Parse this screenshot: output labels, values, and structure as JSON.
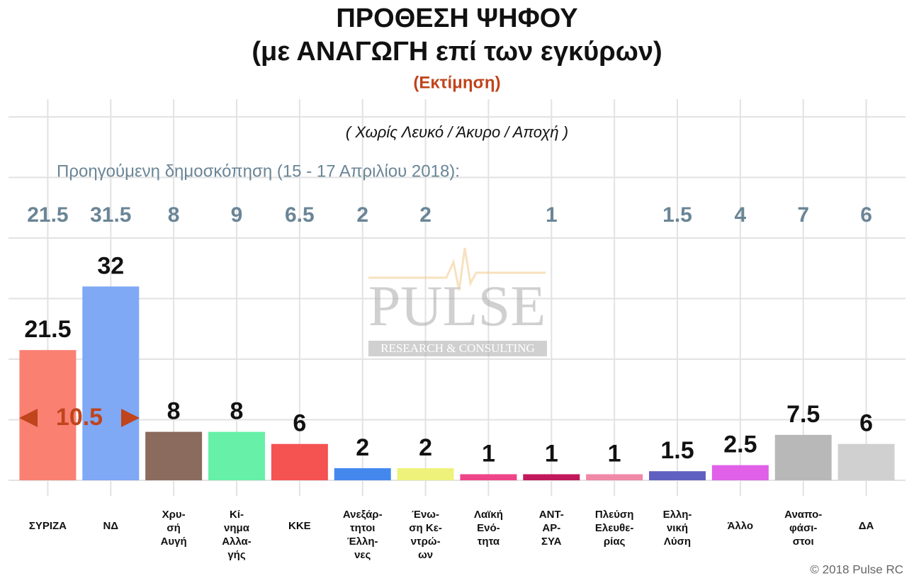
{
  "chart_data": {
    "type": "bar",
    "title": "ΠΡΟΘΕΣΗ ΨΗΦΟΥ",
    "subtitle": "(με ΑΝΑΓΩΓΗ επί των εγκύρων)",
    "estimate_label": "(Εκτίμηση)",
    "note": "( Χωρίς Λευκό / Άκυρο / Αποχή )",
    "categories": [
      [
        "ΣΥΡΙΖΑ"
      ],
      [
        "ΝΔ"
      ],
      [
        "Χρυ-",
        "σή",
        "Αυγή"
      ],
      [
        "Κί-",
        "νημα",
        "Αλλα-",
        "γής"
      ],
      [
        "ΚΚΕ"
      ],
      [
        "Ανεξάρ-",
        "τητοι",
        "Έλλη-",
        "νες"
      ],
      [
        "Ένω-",
        "ση Κε-",
        "ντρώ-",
        "ων"
      ],
      [
        "Λαϊκή",
        "Ενό-",
        "τητα"
      ],
      [
        "ΑΝΤ-",
        "ΑΡ-",
        "ΣΥΑ"
      ],
      [
        "Πλεύση",
        "Ελευθε-",
        "ρίας"
      ],
      [
        "Ελλη-",
        "νική",
        "Λύση"
      ],
      [
        "Άλλο"
      ],
      [
        "Αναπο-",
        "φάσι-",
        "στοι"
      ],
      [
        "ΔΑ"
      ]
    ],
    "values": [
      21.5,
      32,
      8,
      8,
      6,
      2,
      2,
      1,
      1,
      1,
      1.5,
      2.5,
      7.5,
      6
    ],
    "colors": [
      "#fa8072",
      "#7fa8f5",
      "#8b6b5e",
      "#66f0a8",
      "#f55252",
      "#4488ee",
      "#eef27a",
      "#ee4488",
      "#c0185a",
      "#f088a8",
      "#6060c0",
      "#e060e8",
      "#b8b8b8",
      "#d0d0d0"
    ],
    "previous_poll": {
      "label": "Προηγούμενη δημοσκόπηση (15 - 17 Απριλίου 2018):",
      "values": [
        21.5,
        31.5,
        8,
        9,
        6.5,
        2,
        2,
        null,
        1,
        null,
        1.5,
        4,
        7,
        6
      ]
    },
    "lead_annotation": 10.5,
    "ylim": [
      0,
      60
    ],
    "grid": true,
    "watermark": {
      "name": "PULSE",
      "tagline": "RESEARCH & CONSULTING"
    },
    "copyright": "© 2018 Pulse RC"
  }
}
